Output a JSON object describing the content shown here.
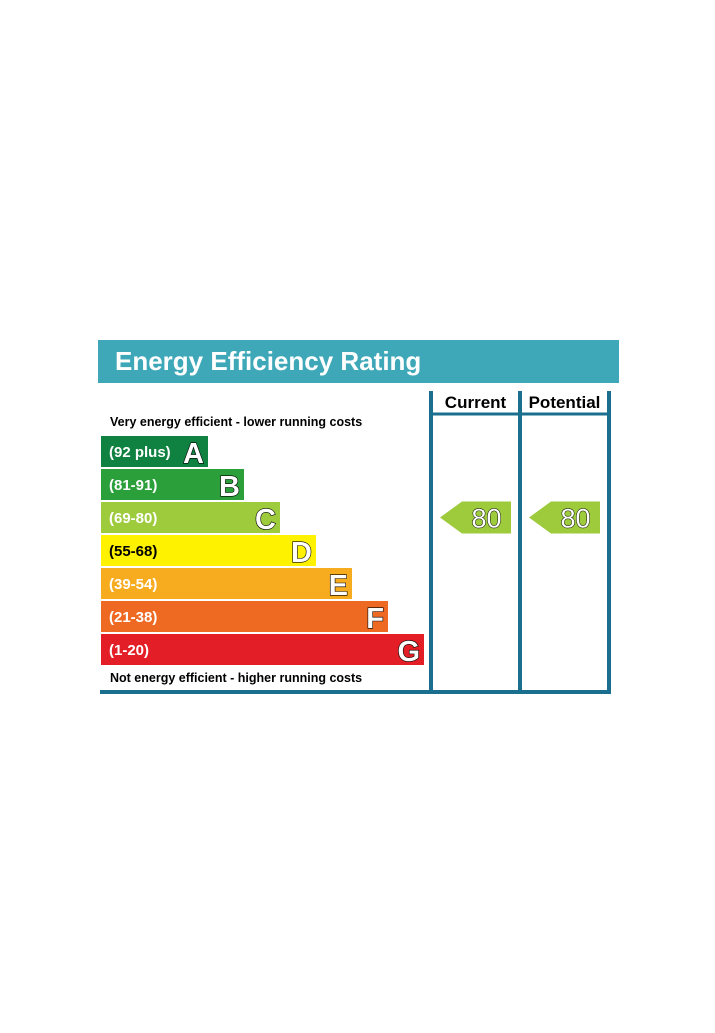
{
  "chart_data": {
    "type": "bar",
    "title": "Energy Efficiency Rating",
    "top_caption": "Very energy efficient - lower running costs",
    "bottom_caption": "Not energy efficient - higher running costs",
    "bands": [
      {
        "letter": "A",
        "range": "(92 plus)",
        "min": 92,
        "max": 100,
        "color": "#0f8140"
      },
      {
        "letter": "B",
        "range": "(81-91)",
        "min": 81,
        "max": 91,
        "color": "#2b9f3a"
      },
      {
        "letter": "C",
        "range": "(69-80)",
        "min": 69,
        "max": 80,
        "color": "#9dcb3c"
      },
      {
        "letter": "D",
        "range": "(55-68)",
        "min": 55,
        "max": 68,
        "color": "#fff200"
      },
      {
        "letter": "E",
        "range": "(39-54)",
        "min": 39,
        "max": 54,
        "color": "#f7ac1f"
      },
      {
        "letter": "F",
        "range": "(21-38)",
        "min": 21,
        "max": 38,
        "color": "#ee6a23"
      },
      {
        "letter": "G",
        "range": "(1-20)",
        "min": 1,
        "max": 20,
        "color": "#e41e26"
      }
    ],
    "columns": [
      {
        "label": "Current",
        "value": 80,
        "band": "C"
      },
      {
        "label": "Potential",
        "value": 80,
        "band": "C"
      }
    ],
    "colors": {
      "title_background": "#3ea8b8",
      "frame": "#1b6f8e",
      "marker": "#9dcb3c"
    }
  }
}
